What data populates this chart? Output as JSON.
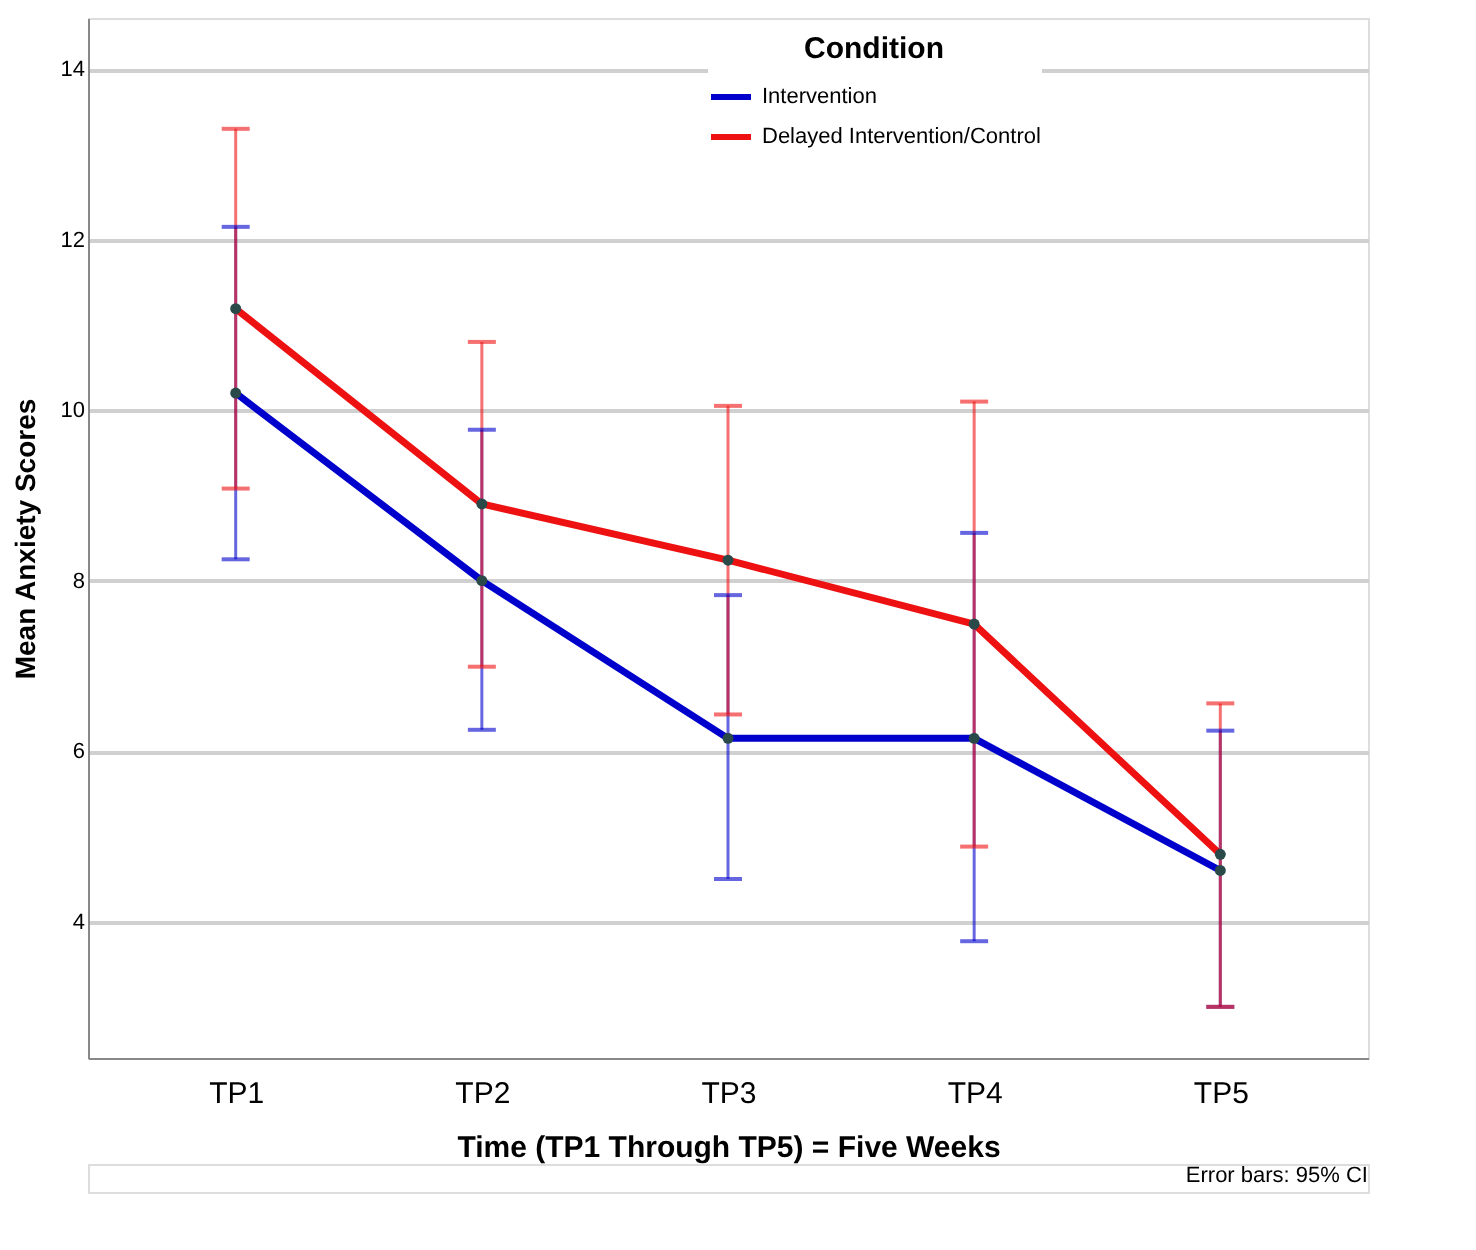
{
  "chart_data": {
    "type": "line",
    "xlabel": "Time (TP1 Through TP5) = Five Weeks",
    "ylabel": "Mean Anxiety Scores",
    "legend_title": "Condition",
    "categories": [
      "TP1",
      "TP2",
      "TP3",
      "TP4",
      "TP5"
    ],
    "series": [
      {
        "name": "Intervention",
        "color": "#0000cc",
        "values": [
          10.2,
          8.0,
          6.15,
          6.15,
          4.6
        ],
        "errors": [
          [
            8.25,
            12.15
          ],
          [
            6.25,
            9.77
          ],
          [
            4.5,
            7.83
          ],
          [
            3.77,
            8.56
          ],
          [
            3.0,
            6.24
          ]
        ]
      },
      {
        "name": "Delayed Intervention/Control",
        "color": "#ee1111",
        "values": [
          11.19,
          8.9,
          8.24,
          7.49,
          4.79
        ],
        "errors": [
          [
            9.08,
            13.3
          ],
          [
            6.99,
            10.8
          ],
          [
            6.43,
            10.05
          ],
          [
            4.88,
            10.1
          ],
          [
            3.0,
            6.56
          ]
        ]
      }
    ],
    "ylim": [
      2.4,
      14.6
    ],
    "yticks": [
      4,
      6,
      8,
      10,
      12,
      14
    ],
    "grid": "y",
    "legend": "top right",
    "marker": "circle",
    "line_style": "solid",
    "annotations": [
      "Error bars: 95% CI"
    ]
  }
}
